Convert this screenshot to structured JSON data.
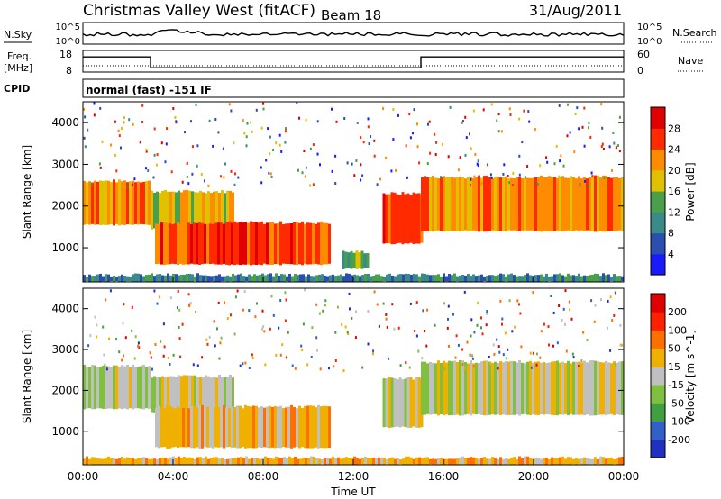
{
  "header": {
    "title": "Christmas Valley West (fitACF)",
    "beam": "Beam 18",
    "date": "31/Aug/2011"
  },
  "params": {
    "nsky_label": "N.Sky",
    "nsearch_label": "N.Search",
    "freq_label": "Freq.",
    "freq_unit": "[MHz]",
    "nave_label": "Nave",
    "cpid_label": "CPID",
    "cpid_text": "normal (fast) -151 IF",
    "nsky_ticks": [
      "10^5",
      "10^0"
    ],
    "nsearch_ticks": [
      "10^5",
      "10^0"
    ],
    "freq_ticks": [
      "18",
      "8"
    ],
    "nave_ticks": [
      "60",
      "0"
    ],
    "freq_series": [
      {
        "t": 0.0,
        "f": 15
      },
      {
        "t": 3.0,
        "f": 15
      },
      {
        "t": 3.0,
        "f": 10
      },
      {
        "t": 15.0,
        "f": 10
      },
      {
        "t": 15.0,
        "f": 15
      },
      {
        "t": 24.0,
        "f": 15
      }
    ]
  },
  "chart_data": [
    {
      "type": "heatmap",
      "quantity": "Power",
      "ylabel": "Slant Range [km]",
      "ylim": [
        180,
        4500
      ],
      "yticks": [
        1000,
        2000,
        3000,
        4000
      ],
      "xlim": [
        0,
        24
      ],
      "colorbar": {
        "label": "Power [dB]",
        "ticks": [
          "4",
          "8",
          "12",
          "16",
          "20",
          "24",
          "28"
        ],
        "colors": [
          "#1a1aff",
          "#2b4fb0",
          "#3a8a8a",
          "#4aa04a",
          "#e0c000",
          "#ff8c00",
          "#ff2a00",
          "#e00000"
        ]
      },
      "regions": [
        {
          "t0": 0.0,
          "t1": 2.9,
          "r0": 1550,
          "r1": 2600,
          "level": 5
        },
        {
          "t0": 3.0,
          "t1": 6.7,
          "r0": 1450,
          "r1": 2350,
          "level": 4
        },
        {
          "t0": 3.2,
          "t1": 11.0,
          "r0": 600,
          "r1": 1600,
          "level": 6
        },
        {
          "t0": 11.5,
          "t1": 12.6,
          "r0": 500,
          "r1": 900,
          "level": 3
        },
        {
          "t0": 13.3,
          "t1": 15.0,
          "r0": 1100,
          "r1": 2300,
          "level": 6
        },
        {
          "t0": 15.0,
          "t1": 24.0,
          "r0": 1400,
          "r1": 2700,
          "level": 5
        },
        {
          "t0": 0.0,
          "t1": 24.0,
          "r0": 180,
          "r1": 350,
          "level": 2
        }
      ]
    },
    {
      "type": "heatmap",
      "quantity": "Velocity",
      "ylabel": "Slant Range [km]",
      "xlabel": "Time UT",
      "ylim": [
        180,
        4500
      ],
      "yticks": [
        1000,
        2000,
        3000,
        4000
      ],
      "xlim": [
        0,
        24
      ],
      "xticks": [
        "00:00",
        "04:00",
        "08:00",
        "12:00",
        "16:00",
        "20:00",
        "00:00"
      ],
      "colorbar": {
        "label": "Velocity [m s^-1]",
        "ticks": [
          "200",
          "100",
          "50",
          "15",
          "-15",
          "-50",
          "-100",
          "-200"
        ],
        "colors": [
          "#2030c0",
          "#3060c8",
          "#40a040",
          "#80c040",
          "#c0c0c0",
          "#f0b000",
          "#ff7000",
          "#ff2000",
          "#e00000"
        ]
      },
      "regions": [
        {
          "t0": 0.0,
          "t1": 2.9,
          "r0": 1550,
          "r1": 2600,
          "level": 4
        },
        {
          "t0": 3.0,
          "t1": 6.7,
          "r0": 1450,
          "r1": 2350,
          "level": 4
        },
        {
          "t0": 3.2,
          "t1": 11.0,
          "r0": 600,
          "r1": 1600,
          "level": 5
        },
        {
          "t0": 13.3,
          "t1": 15.0,
          "r0": 1100,
          "r1": 2300,
          "level": 4
        },
        {
          "t0": 15.0,
          "t1": 24.0,
          "r0": 1400,
          "r1": 2700,
          "level": 4
        },
        {
          "t0": 0.0,
          "t1": 24.0,
          "r0": 180,
          "r1": 350,
          "level": 5
        }
      ]
    }
  ]
}
